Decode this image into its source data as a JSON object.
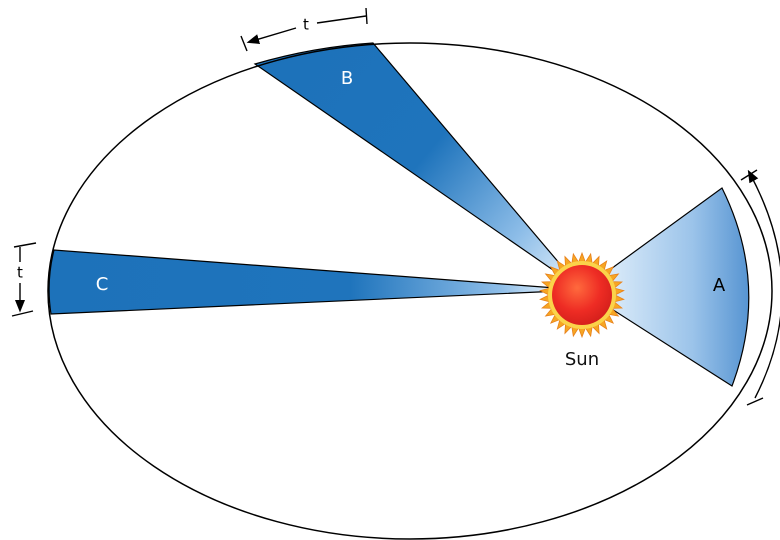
{
  "diagram": {
    "sectors": {
      "a": {
        "label": "A"
      },
      "b": {
        "label": "B"
      },
      "c": {
        "label": "C"
      }
    },
    "sun": {
      "label": "Sun"
    },
    "time_markers": {
      "top": "t",
      "left": "t"
    },
    "colors": {
      "sector_dark": "#1d72ba",
      "sector_light": "#c9e2f6",
      "sun_core": "#ee2c24",
      "sun_corona": "#f6a623",
      "orbit_line": "#000000"
    }
  }
}
